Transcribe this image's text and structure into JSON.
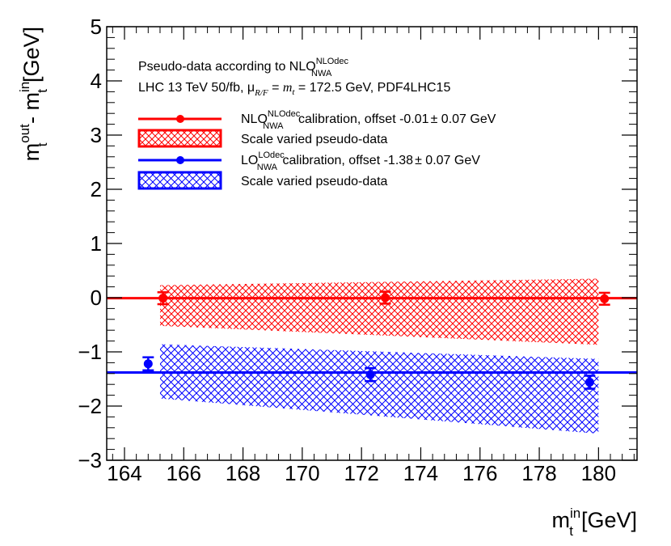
{
  "chart_data": {
    "type": "scatter",
    "x_axis": {
      "range": [
        163.4,
        181.3
      ],
      "major_ticks": [
        164,
        166,
        168,
        170,
        172,
        174,
        176,
        178,
        180
      ],
      "tick_labels": [
        "164",
        "166",
        "168",
        "170",
        "172",
        "174",
        "176",
        "178",
        "180"
      ],
      "label_main": "m",
      "label_sub": "t",
      "label_sup": "in",
      "label_unit": "[GeV]"
    },
    "y_axis": {
      "range": [
        -3,
        5
      ],
      "major_ticks": [
        -3,
        -2,
        -1,
        0,
        1,
        2,
        3,
        4,
        5
      ],
      "tick_labels": [
        "−3",
        "−2",
        "−1",
        "0",
        "1",
        "2",
        "3",
        "4",
        "5"
      ],
      "label_m1": "m",
      "label_sub1": "t",
      "label_sup1": "out",
      "label_dash": " - ",
      "label_m2": "m",
      "label_sub2": "t",
      "label_sup2": "in",
      "label_unit": "[GeV]"
    },
    "annotations": {
      "line1_text": "Pseudo-data according to NLO",
      "line1_sup": "NLOdec",
      "line1_sub": "NWA",
      "line2_a": "LHC 13 TeV 50/fb, μ",
      "line2_sub": "R/F",
      "line2_eq": " = ",
      "line2_mt": "m",
      "line2_mt_sub": "t",
      "line2_b": " = 172.5 GeV, PDF4LHC15"
    },
    "series": [
      {
        "name": "NLO calibration",
        "color": "#ff0000",
        "calibration_offset": -0.01,
        "points": [
          {
            "x": 165.3,
            "y": -0.01,
            "err": 0.11
          },
          {
            "x": 172.8,
            "y": 0.0,
            "err": 0.11
          },
          {
            "x": 180.2,
            "y": -0.02,
            "err": 0.11
          }
        ],
        "band": {
          "x": [
            165.2,
            180.0
          ],
          "lower": [
            -0.52,
            -0.87
          ],
          "upper": [
            0.23,
            0.35
          ]
        },
        "legend_line": {
          "main": "NLO",
          "sup": "NLOdec",
          "sub": "NWA",
          "rest": " calibration, offset -0.01",
          "pm": "±",
          "err": " 0.07 GeV"
        },
        "legend_band": "Scale varied pseudo-data"
      },
      {
        "name": "LO calibration",
        "color": "#0000ff",
        "calibration_offset": -1.38,
        "points": [
          {
            "x": 164.8,
            "y": -1.22,
            "err": 0.12
          },
          {
            "x": 172.3,
            "y": -1.42,
            "err": 0.12
          },
          {
            "x": 179.7,
            "y": -1.56,
            "err": 0.12
          }
        ],
        "band": {
          "x": [
            165.2,
            180.0
          ],
          "lower": [
            -1.86,
            -2.51
          ],
          "upper": [
            -0.86,
            -1.13
          ]
        },
        "legend_line": {
          "main": "LO",
          "sup": "LOdec",
          "sub": "NWA",
          "rest": " calibration, offset -1.38",
          "pm": "±",
          "err": " 0.07 GeV"
        },
        "legend_band": "Scale varied pseudo-data"
      }
    ]
  }
}
